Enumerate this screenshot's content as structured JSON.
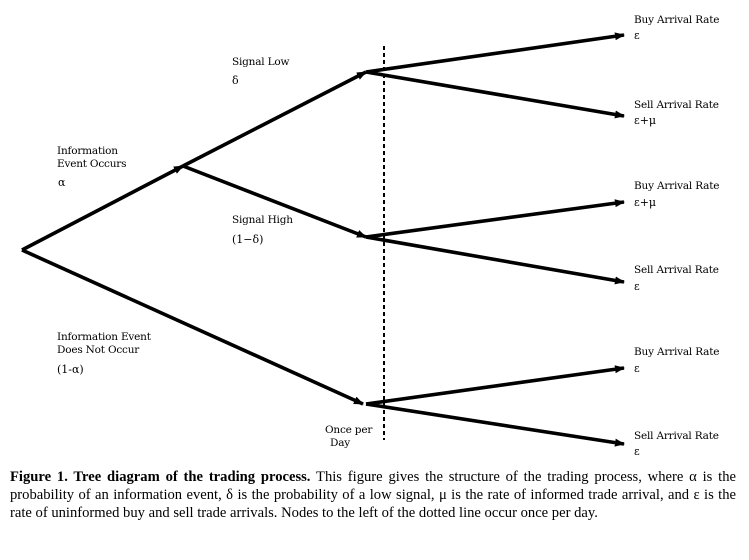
{
  "figure": {
    "nodes": {
      "info_event": {
        "label_lines": [
          "Information",
          "Event Occurs"
        ],
        "prob": "α"
      },
      "no_event": {
        "label_lines": [
          "Information Event",
          "Does Not Occur"
        ],
        "prob": "(1-α)"
      },
      "signal_low": {
        "label": "Signal Low",
        "prob": "δ"
      },
      "signal_high": {
        "label": "Signal High",
        "prob": "(1−δ)"
      },
      "once_per_day": {
        "label_lines": [
          "Once per",
          "Day"
        ]
      }
    },
    "outcomes": [
      {
        "label": "Buy Arrival Rate",
        "rate": "ε"
      },
      {
        "label": "Sell Arrival Rate",
        "rate": "ε+μ"
      },
      {
        "label": "Buy Arrival Rate",
        "rate": "ε+μ"
      },
      {
        "label": "Sell Arrival Rate",
        "rate": "ε"
      },
      {
        "label": "Buy Arrival Rate",
        "rate": "ε"
      },
      {
        "label": "Sell Arrival Rate",
        "rate": "ε"
      }
    ]
  },
  "caption": {
    "title": "Figure 1. Tree diagram of the trading process.",
    "body": " This figure gives the structure of the trading process, where α is the probability of an information event, δ is the probability of a low signal, μ is the rate of informed trade arrival, and ε is the rate of uninformed buy and sell trade arrivals. Nodes to the left of the dotted line occur once per day."
  }
}
